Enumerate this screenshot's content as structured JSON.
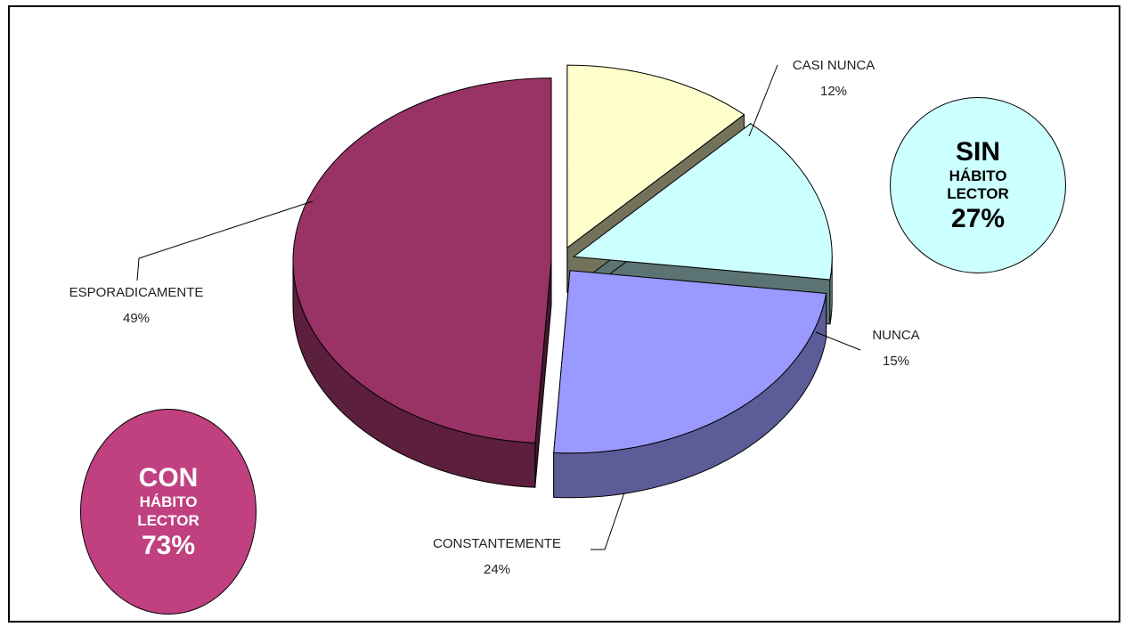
{
  "chart_data": {
    "type": "pie",
    "title": "",
    "slices": [
      {
        "label": "ESPORADICAMENTE",
        "value": 49,
        "display": "49%",
        "color": "#993366"
      },
      {
        "label": "CASI NUNCA",
        "value": 12,
        "display": "12%",
        "color": "#ffffcc"
      },
      {
        "label": "NUNCA",
        "value": 15,
        "display": "15%",
        "color": "#ccffff"
      },
      {
        "label": "CONSTANTEMENTE",
        "value": 24,
        "display": "24%",
        "color": "#9999ff"
      }
    ],
    "three_d": true,
    "exploded": true
  },
  "badges": {
    "sin": {
      "line1": "SIN",
      "line2": "HÁBITO",
      "line3": "LECTOR",
      "line4": "27%",
      "bg": "#ccffff"
    },
    "con": {
      "line1": "CON",
      "line2": "HÁBITO",
      "line3": "LECTOR",
      "line4": "73%",
      "bg": "#c04080"
    }
  }
}
